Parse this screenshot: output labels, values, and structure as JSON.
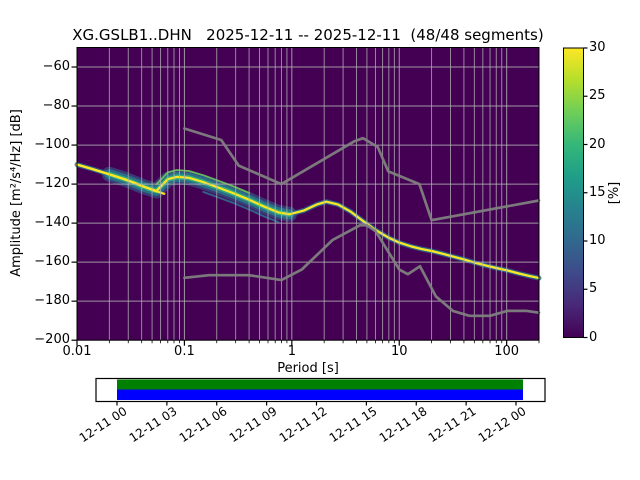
{
  "title": "XG.GSLB1..DHN   2025-12-11 -- 2025-12-11  (48/48 segments)",
  "axes": {
    "ylabel": "Amplitude [m²/s⁴/Hz] [dB]",
    "xlabel": "Period [s]",
    "ytick_labels": [
      "−60",
      "−80",
      "−100",
      "−120",
      "−140",
      "−160",
      "−180",
      "−200"
    ],
    "xtick_labels": [
      "0.01",
      "0.1",
      "1",
      "10",
      "100"
    ]
  },
  "colorbar": {
    "label": "[%]",
    "tick_labels": [
      "0",
      "5",
      "10",
      "15",
      "20",
      "25",
      "30"
    ],
    "range": [
      0,
      30
    ],
    "colormap": "viridis",
    "gradient": [
      "#440154",
      "#482878",
      "#3e4a89",
      "#31688e",
      "#26828e",
      "#1f9e89",
      "#35b779",
      "#6ece58",
      "#b5de2b",
      "#fde725"
    ]
  },
  "timeline": {
    "labels": [
      "12-11 00",
      "12-11 03",
      "12-11 06",
      "12-11 09",
      "12-11 12",
      "12-11 15",
      "12-11 18",
      "12-11 21",
      "12-12 00"
    ],
    "coverage_color": "#008000",
    "segment_color": "#0000ff"
  },
  "chart_data": {
    "type": "heatmap",
    "title": "XG.GSLB1..DHN   2025-12-11 -- 2025-12-11  (48/48 segments)",
    "xlabel": "Period [s]",
    "ylabel": "Amplitude [m²/s⁴/Hz] [dB]",
    "xscale": "log",
    "xlim": [
      0.01,
      200
    ],
    "ylim": [
      -200,
      -50
    ],
    "grid": true,
    "segments_used": "48/48",
    "date_range": [
      "2025-12-11",
      "2025-12-11"
    ],
    "colorbar": {
      "label": "[%]",
      "range": [
        0,
        30
      ],
      "colormap": "viridis"
    },
    "psd_mode_line": [
      [
        0.01,
        -110
      ],
      [
        0.014,
        -112.3
      ],
      [
        0.02,
        -115
      ],
      [
        0.028,
        -117.5
      ],
      [
        0.04,
        -121
      ],
      [
        0.055,
        -123.5
      ],
      [
        0.07,
        -117.5
      ],
      [
        0.085,
        -116.3
      ],
      [
        0.11,
        -116.8
      ],
      [
        0.15,
        -119
      ],
      [
        0.2,
        -121.5
      ],
      [
        0.28,
        -124.5
      ],
      [
        0.4,
        -128
      ],
      [
        0.55,
        -131.5
      ],
      [
        0.75,
        -134.5
      ],
      [
        0.95,
        -135.5
      ],
      [
        1.3,
        -133.5
      ],
      [
        1.7,
        -130.5
      ],
      [
        2.1,
        -129
      ],
      [
        2.7,
        -130.5
      ],
      [
        3.5,
        -134
      ],
      [
        4.5,
        -138.5
      ],
      [
        6,
        -143.5
      ],
      [
        8,
        -147.5
      ],
      [
        10,
        -150
      ],
      [
        13,
        -152
      ],
      [
        16,
        -153.2
      ],
      [
        20,
        -154.3
      ],
      [
        25,
        -155.6
      ],
      [
        32,
        -157.2
      ],
      [
        40,
        -158.6
      ],
      [
        50,
        -160.2
      ],
      [
        65,
        -161.8
      ],
      [
        80,
        -163
      ],
      [
        100,
        -164.2
      ],
      [
        130,
        -165.8
      ],
      [
        160,
        -167
      ],
      [
        200,
        -168.2
      ]
    ],
    "psd_secondary_branch": [
      [
        0.01,
        -110
      ],
      [
        0.02,
        -115
      ],
      [
        0.035,
        -119.5
      ],
      [
        0.05,
        -123
      ],
      [
        0.065,
        -125
      ]
    ],
    "noise_models": {
      "nhnm": [
        [
          0.1,
          -91.5
        ],
        [
          0.22,
          -97.4
        ],
        [
          0.32,
          -110.5
        ],
        [
          0.8,
          -120
        ],
        [
          3.8,
          -98.1
        ],
        [
          4.6,
          -96.5
        ],
        [
          6.3,
          -101
        ],
        [
          7.9,
          -113.5
        ],
        [
          15.4,
          -120
        ],
        [
          20,
          -138.5
        ],
        [
          200,
          -128.4
        ]
      ],
      "nlnm": [
        [
          0.1,
          -168
        ],
        [
          0.17,
          -166.7
        ],
        [
          0.4,
          -166.7
        ],
        [
          0.8,
          -169.2
        ],
        [
          1.24,
          -163.7
        ],
        [
          2.4,
          -148.6
        ],
        [
          4.3,
          -141.1
        ],
        [
          5,
          -141.1
        ],
        [
          6,
          -144
        ],
        [
          10,
          -163.8
        ],
        [
          12,
          -166.2
        ],
        [
          15.6,
          -162.1
        ],
        [
          21.9,
          -177.5
        ],
        [
          31.6,
          -185
        ],
        [
          45,
          -187.5
        ],
        [
          70,
          -187.5
        ],
        [
          101,
          -185
        ],
        [
          154,
          -185
        ],
        [
          200,
          -185.9
        ]
      ]
    },
    "colors": {
      "background": "#440154",
      "grid": "#b0b0b0",
      "noise_model": "#7f7f7f",
      "mode_line": "#fde725",
      "band": [
        "#31688e",
        "#26828e",
        "#35b779",
        "#6ece58"
      ]
    }
  }
}
